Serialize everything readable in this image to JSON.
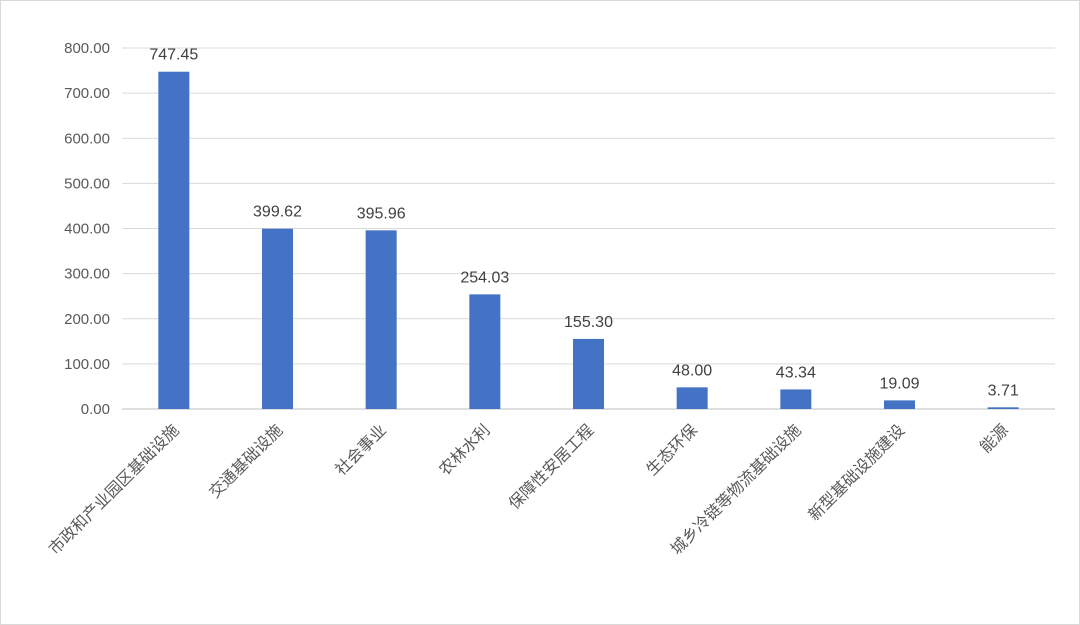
{
  "chart_data": {
    "type": "bar",
    "categories": [
      "市政和产业园区基础设施",
      "交通基础设施",
      "社会事业",
      "农林水利",
      "保障性安居工程",
      "生态环保",
      "城乡冷链等物流基础设施",
      "新型基础设施建设",
      "能源"
    ],
    "values": [
      747.45,
      399.62,
      395.96,
      254.03,
      155.3,
      48.0,
      43.34,
      19.09,
      3.71
    ],
    "value_labels": [
      "747.45",
      "399.62",
      "395.96",
      "254.03",
      "155.30",
      "48.00",
      "43.34",
      "19.09",
      "3.71"
    ],
    "y_ticks": [
      "0.00",
      "100.00",
      "200.00",
      "300.00",
      "400.00",
      "500.00",
      "600.00",
      "700.00",
      "800.00"
    ],
    "ylim": [
      0,
      800
    ],
    "grid": true,
    "legend": "none",
    "bar_color": "#4472C4"
  }
}
